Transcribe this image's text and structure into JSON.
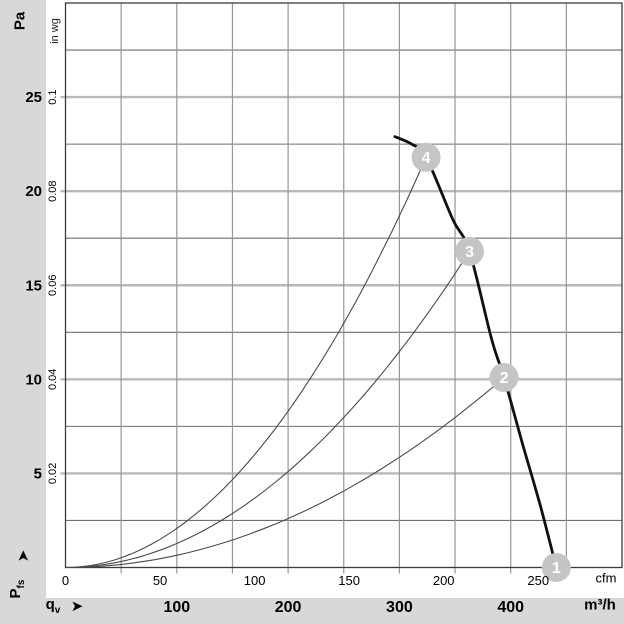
{
  "labels": {
    "pa_unit": "Pa",
    "inwg_unit": "in wg",
    "pfs_base": "P",
    "pfs_sub": "fs",
    "qv_base": "q",
    "qv_sub": "v",
    "cfm_unit": "cfm",
    "m3h_unit": "m³/h",
    "axis_arrow": "➤"
  },
  "style": {
    "page_bg": "#d8d8d8",
    "plot_bg": "#ffffff",
    "frame_color": "#3c3c3c",
    "grid_light": "#b9b9b9",
    "grid_dark": "#6f6f6f",
    "grid_vertical": "#979797",
    "fan_curve_color": "#101010",
    "system_curve_color": "#4a4a4a",
    "marker_fill": "#c5c5c5",
    "marker_text": "#ffffff",
    "text_color": "#000000"
  },
  "chart_data": {
    "type": "line",
    "title": "Fan curve: static pressure vs. volume flow with system resistance curves 1-4",
    "x_axis": {
      "unit": "m³/h",
      "range": [
        0,
        500
      ],
      "grid_step": 50,
      "labeled_ticks": [
        100,
        200,
        300,
        400
      ]
    },
    "x_axis_cfm": {
      "unit": "cfm",
      "ticks": [
        0,
        50,
        100,
        150,
        200,
        250
      ],
      "m3h_per_cfm": 1.699
    },
    "y_axis": {
      "unit": "Pa",
      "range": [
        0,
        30
      ],
      "grid_step": 2.5,
      "labeled_ticks": [
        {
          "pa": 5,
          "inwg": "0.02"
        },
        {
          "pa": 10,
          "inwg": "0.04"
        },
        {
          "pa": 15,
          "inwg": "0.06"
        },
        {
          "pa": 20,
          "inwg": "0.08"
        },
        {
          "pa": 25,
          "inwg": "0.1"
        }
      ]
    },
    "fan_curve": [
      [
        296,
        22.9
      ],
      [
        311,
        22.5
      ],
      [
        324,
        21.8
      ],
      [
        348,
        18.5
      ],
      [
        363,
        16.8
      ],
      [
        383,
        12.1
      ],
      [
        394,
        10.1
      ],
      [
        411,
        6.5
      ],
      [
        427,
        3.2
      ],
      [
        441,
        0
      ]
    ],
    "system_curves": [
      {
        "id": "4",
        "q_max": 324,
        "p_max": 21.8
      },
      {
        "id": "3",
        "q_max": 363,
        "p_max": 16.8
      },
      {
        "id": "2",
        "q_max": 394,
        "p_max": 10.1
      }
    ],
    "operating_points": [
      {
        "label": "1",
        "q": 441,
        "p": 0
      },
      {
        "label": "2",
        "q": 394,
        "p": 10.1
      },
      {
        "label": "3",
        "q": 363,
        "p": 16.8
      },
      {
        "label": "4",
        "q": 324,
        "p": 21.8
      }
    ]
  }
}
